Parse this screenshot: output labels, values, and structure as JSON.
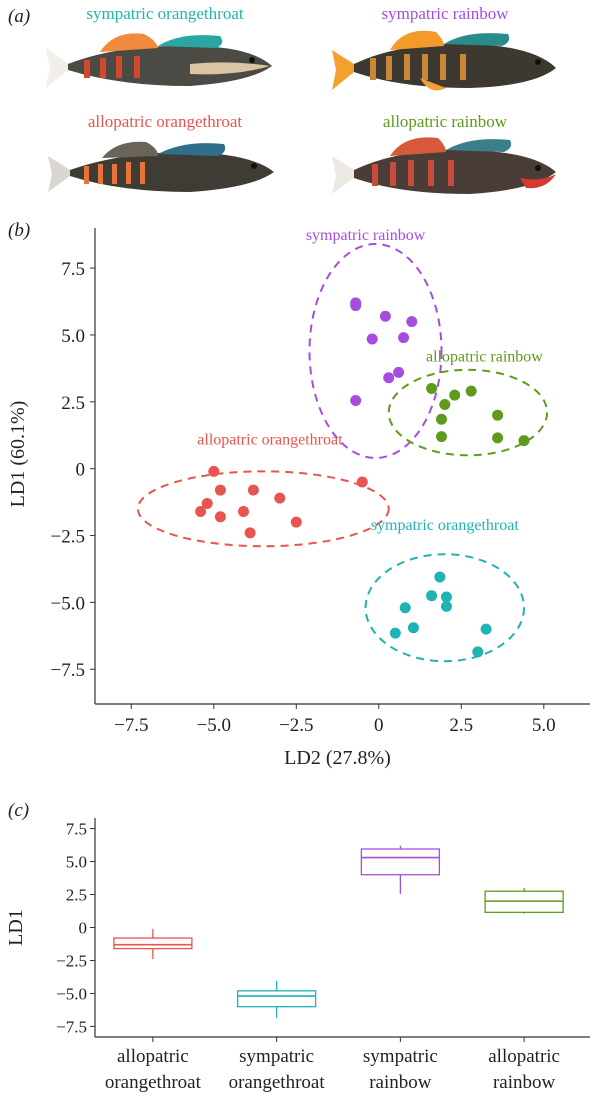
{
  "panels": {
    "a": "(a)",
    "b": "(b)",
    "c": "(c)"
  },
  "groups": [
    {
      "key": "so",
      "name": "sympatric orangethroat",
      "color": "#1fb3b3"
    },
    {
      "key": "sr",
      "name": "sympatric rainbow",
      "color": "#a64de0"
    },
    {
      "key": "ao",
      "name": "allopatric orangethroat",
      "color": "#e8544f"
    },
    {
      "key": "ar",
      "name": "allopatric rainbow",
      "color": "#5f9a1c"
    }
  ],
  "fish": [
    {
      "label": "sympatric orangethroat",
      "color": "#1fb3b3",
      "icon": "fish-icon"
    },
    {
      "label": "sympatric rainbow",
      "color": "#a64de0",
      "icon": "fish-icon"
    },
    {
      "label": "allopatric orangethroat",
      "color": "#e8544f",
      "icon": "fish-icon"
    },
    {
      "label": "allopatric rainbow",
      "color": "#5f9a1c",
      "icon": "fish-icon"
    }
  ],
  "chart_data": [
    {
      "type": "scatter",
      "xlabel": "LD2 (27.8%)",
      "ylabel": "LD1 (60.1%)",
      "xlim": [
        -8.6,
        6.4
      ],
      "ylim": [
        -8.8,
        9.0
      ],
      "xticks": [
        -7.5,
        -5.0,
        -2.5,
        0,
        2.5,
        5.0
      ],
      "xtick_labels": [
        "−7.5",
        "−5.0",
        "−2.5",
        "0",
        "2.5",
        "5.0"
      ],
      "yticks": [
        7.5,
        5.0,
        2.5,
        0,
        -2.5,
        -5.0,
        -7.5
      ],
      "ytick_labels": [
        "7.5",
        "5.0",
        "2.5",
        "0",
        "−2.5",
        "−5.0",
        "−7.5"
      ],
      "series": [
        {
          "name": "sympatric rainbow",
          "color": "#a64de0",
          "points": [
            [
              -0.7,
              6.2
            ],
            [
              -0.7,
              6.1
            ],
            [
              0.2,
              5.7
            ],
            [
              1.0,
              5.5
            ],
            [
              -0.2,
              4.85
            ],
            [
              0.75,
              4.9
            ],
            [
              0.6,
              3.6
            ],
            [
              0.3,
              3.4
            ],
            [
              -0.7,
              2.55
            ]
          ],
          "ellipse": {
            "cx": -0.1,
            "cy": 4.4,
            "rx": 2.0,
            "ry": 4.0
          }
        },
        {
          "name": "allopatric rainbow",
          "color": "#5f9a1c",
          "points": [
            [
              1.6,
              3.0
            ],
            [
              2.3,
              2.75
            ],
            [
              2.8,
              2.9
            ],
            [
              2.0,
              2.4
            ],
            [
              1.9,
              1.85
            ],
            [
              3.6,
              2.0
            ],
            [
              1.9,
              1.2
            ],
            [
              3.6,
              1.15
            ],
            [
              4.4,
              1.05
            ]
          ],
          "ellipse": {
            "cx": 2.7,
            "cy": 2.1,
            "rx": 2.4,
            "ry": 1.6
          }
        },
        {
          "name": "allopatric orangethroat",
          "color": "#e8544f",
          "points": [
            [
              -5.0,
              -0.1
            ],
            [
              -4.8,
              -0.8
            ],
            [
              -3.8,
              -0.8
            ],
            [
              -0.5,
              -0.5
            ],
            [
              -5.2,
              -1.3
            ],
            [
              -5.4,
              -1.6
            ],
            [
              -4.8,
              -1.8
            ],
            [
              -4.1,
              -1.6
            ],
            [
              -3.0,
              -1.1
            ],
            [
              -2.5,
              -2.0
            ],
            [
              -3.9,
              -2.4
            ]
          ],
          "ellipse": {
            "cx": -3.5,
            "cy": -1.5,
            "rx": 3.8,
            "ry": 1.4
          }
        },
        {
          "name": "sympatric orangethroat",
          "color": "#1fb3b3",
          "points": [
            [
              1.85,
              -4.05
            ],
            [
              1.6,
              -4.75
            ],
            [
              2.05,
              -4.8
            ],
            [
              2.05,
              -5.15
            ],
            [
              0.8,
              -5.2
            ],
            [
              3.25,
              -6.0
            ],
            [
              1.05,
              -5.95
            ],
            [
              0.5,
              -6.15
            ],
            [
              3.0,
              -6.85
            ]
          ],
          "ellipse": {
            "cx": 2.0,
            "cy": -5.2,
            "rx": 2.4,
            "ry": 2.0
          }
        }
      ]
    },
    {
      "type": "box",
      "ylabel": "LD1",
      "ylim": [
        -8.3,
        8.3
      ],
      "yticks": [
        7.5,
        5.0,
        2.5,
        0,
        -2.5,
        -5.0,
        -7.5
      ],
      "ytick_labels": [
        "7.5",
        "5.0",
        "2.5",
        "0",
        "−2.5",
        "−5.0",
        "−7.5"
      ],
      "categories": [
        {
          "line1": "allopatric",
          "line2": "orangethroat"
        },
        {
          "line1": "sympatric",
          "line2": "orangethroat"
        },
        {
          "line1": "sympatric",
          "line2": "rainbow"
        },
        {
          "line1": "allopatric",
          "line2": "rainbow"
        }
      ],
      "boxes": [
        {
          "color": "#e8544f",
          "min": -2.4,
          "q1": -1.6,
          "median": -1.3,
          "q3": -0.8,
          "max": -0.1
        },
        {
          "color": "#1fb3b3",
          "min": -6.85,
          "q1": -6.0,
          "median": -5.2,
          "q3": -4.8,
          "max": -4.05
        },
        {
          "color": "#a64de0",
          "min": 2.55,
          "q1": 4.0,
          "median": 5.3,
          "q3": 5.95,
          "max": 6.2
        },
        {
          "color": "#5f9a1c",
          "min": 1.05,
          "q1": 1.15,
          "median": 2.0,
          "q3": 2.75,
          "max": 3.0
        }
      ]
    }
  ]
}
